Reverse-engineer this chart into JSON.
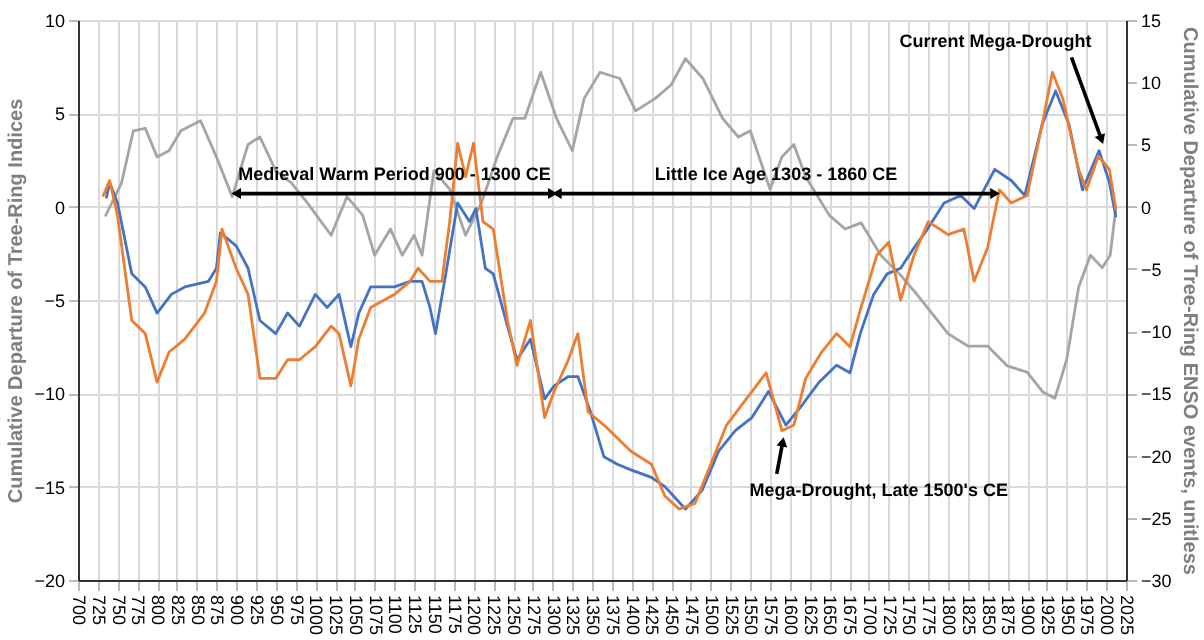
{
  "chart_data": {
    "type": "line",
    "xlabel": null,
    "ylabel": "Cumulative Departure of Tree-Ring Indices",
    "y2label": "Cumulative Departure of Tree-Ring ENSO events, unitless",
    "xlim": [
      700,
      2025
    ],
    "xticks": [
      700,
      725,
      750,
      775,
      800,
      825,
      850,
      875,
      900,
      925,
      950,
      975,
      1000,
      1025,
      1050,
      1075,
      1100,
      1125,
      1150,
      1175,
      1200,
      1225,
      1250,
      1275,
      1300,
      1325,
      1350,
      1375,
      1400,
      1425,
      1450,
      1475,
      1500,
      1525,
      1550,
      1575,
      1600,
      1625,
      1650,
      1675,
      1700,
      1725,
      1750,
      1775,
      1800,
      1825,
      1850,
      1875,
      1900,
      1925,
      1950,
      1975,
      2000,
      2025
    ],
    "ylim": [
      -20,
      10
    ],
    "yticks": [
      -20,
      -15,
      -10,
      -5,
      0,
      5,
      10
    ],
    "y2lim": [
      -30,
      15
    ],
    "y2ticks": [
      -30,
      -25,
      -20,
      -15,
      -10,
      -5,
      0,
      5,
      10,
      15
    ],
    "grid": true,
    "marker": "none",
    "line_style": "solid",
    "series": [
      {
        "color": "#4472c4",
        "x": [
          736,
          740,
          750,
          768,
          785,
          800,
          818,
          835,
          865,
          875,
          880,
          900,
          915,
          930,
          950,
          965,
          980,
          1000,
          1015,
          1030,
          1045,
          1055,
          1070,
          1100,
          1120,
          1135,
          1145,
          1152,
          1165,
          1180,
          1195,
          1203,
          1215,
          1225,
          1243,
          1255,
          1272,
          1290,
          1302,
          1320,
          1332,
          1348,
          1365,
          1382,
          1399,
          1425,
          1442,
          1468,
          1489,
          1510,
          1531,
          1552,
          1573,
          1595,
          1616,
          1637,
          1659,
          1676,
          1689,
          1706,
          1723,
          1740,
          1757,
          1774,
          1795,
          1816,
          1833,
          1859,
          1880,
          1897,
          1919,
          1936,
          1953,
          1970,
          1991,
          2004,
          2012
        ],
        "values": [
          0.5,
          1.3,
          0.2,
          -3.6,
          -4.3,
          -5.7,
          -4.7,
          -4.3,
          -4,
          -3.3,
          -1.4,
          -2.1,
          -3.3,
          -6.1,
          -6.8,
          -5.7,
          -6.4,
          -4.7,
          -5.4,
          -4.7,
          -7.5,
          -5.7,
          -4.3,
          -4.3,
          -4,
          -4,
          -5.4,
          -6.8,
          -3.6,
          0.2,
          -0.8,
          -0.1,
          -3.3,
          -3.6,
          -6.4,
          -8.2,
          -7.1,
          -10.3,
          -9.6,
          -9.1,
          -9.1,
          -11,
          -13.4,
          -13.8,
          -14.1,
          -14.5,
          -15,
          -16.2,
          -15.2,
          -13.1,
          -12,
          -11.3,
          -9.9,
          -11.7,
          -10.6,
          -9.4,
          -8.5,
          -8.9,
          -6.8,
          -4.7,
          -3.6,
          -3.3,
          -2.2,
          -1.2,
          0.2,
          0.6,
          -0.1,
          2,
          1.4,
          0.6,
          4.4,
          6.2,
          4.4,
          0.9,
          3,
          1.3,
          -0.5
        ]
      },
      {
        "color": "#ed7d31",
        "x": [
          732,
          740,
          750,
          768,
          785,
          800,
          815,
          835,
          860,
          875,
          882,
          900,
          915,
          930,
          950,
          965,
          980,
          1000,
          1020,
          1030,
          1045,
          1055,
          1070,
          1100,
          1120,
          1130,
          1145,
          1160,
          1170,
          1180,
          1190,
          1200,
          1212,
          1225,
          1243,
          1255,
          1272,
          1290,
          1302,
          1320,
          1332,
          1345,
          1365,
          1399,
          1425,
          1442,
          1460,
          1480,
          1500,
          1520,
          1545,
          1570,
          1590,
          1605,
          1620,
          1640,
          1659,
          1676,
          1690,
          1710,
          1725,
          1740,
          1757,
          1775,
          1800,
          1820,
          1833,
          1850,
          1865,
          1880,
          1900,
          1919,
          1932,
          1945,
          1965,
          1975,
          1990,
          2004,
          2012
        ],
        "values": [
          0.6,
          1.4,
          -0.5,
          -6.1,
          -6.8,
          -9.4,
          -7.8,
          -7.1,
          -5.7,
          -4,
          -1.2,
          -3.3,
          -4.7,
          -9.2,
          -9.2,
          -8.2,
          -8.2,
          -7.5,
          -6.4,
          -6.8,
          -9.6,
          -7.1,
          -5.4,
          -4.7,
          -4,
          -3.3,
          -4,
          -4,
          -0.8,
          3.4,
          1.6,
          3.4,
          -0.8,
          -1.2,
          -6.1,
          -8.5,
          -6.1,
          -11.3,
          -9.9,
          -8.2,
          -6.8,
          -11,
          -11.7,
          -13.1,
          -13.8,
          -15.5,
          -16.2,
          -15.9,
          -13.8,
          -11.7,
          -10.3,
          -8.9,
          -12,
          -11.7,
          -9.2,
          -7.8,
          -6.8,
          -7.5,
          -5.4,
          -2.6,
          -1.9,
          -5,
          -2.6,
          -0.8,
          -1.5,
          -1.2,
          -4,
          -2.2,
          0.9,
          0.2,
          0.6,
          4.4,
          7.2,
          5.8,
          2,
          0.9,
          2.7,
          2,
          -0.1
        ]
      },
      {
        "color": "#a5a5a5",
        "axis": "y2",
        "x": [
          735,
          755,
          770,
          785,
          800,
          815,
          830,
          855,
          875,
          895,
          915,
          930,
          950,
          970,
          990,
          1020,
          1040,
          1060,
          1075,
          1095,
          1110,
          1125,
          1135,
          1150,
          1170,
          1190,
          1210,
          1230,
          1250,
          1265,
          1285,
          1305,
          1325,
          1340,
          1360,
          1385,
          1405,
          1430,
          1450,
          1468,
          1490,
          1515,
          1535,
          1550,
          1575,
          1590,
          1605,
          1620,
          1650,
          1670,
          1690,
          1715,
          1740,
          1760,
          1780,
          1800,
          1825,
          1850,
          1875,
          1900,
          1920,
          1935,
          1950,
          1965,
          1980,
          1995,
          2005,
          2012
        ],
        "values": [
          -0.7,
          1.9,
          6.1,
          6.3,
          4,
          4.5,
          6.1,
          6.9,
          4,
          0.8,
          5,
          5.6,
          2.9,
          1.9,
          0.3,
          -2.3,
          0.8,
          -0.7,
          -3.9,
          -1.8,
          -3.9,
          -2.3,
          -3.9,
          2.9,
          1.4,
          -2.3,
          0.3,
          4,
          7.1,
          7.1,
          10.8,
          7.1,
          4.5,
          8.7,
          10.8,
          10.3,
          7.7,
          8.7,
          9.8,
          11.9,
          10.3,
          7.1,
          5.6,
          6.1,
          1.4,
          4,
          5,
          2.4,
          -0.7,
          -1.8,
          -1.3,
          -3.9,
          -5.5,
          -7,
          -8.6,
          -10.2,
          -11.2,
          -11.2,
          -12.8,
          -13.3,
          -14.9,
          -15.4,
          -12.3,
          -6.5,
          -3.9,
          -4.9,
          -3.9,
          -0.2
        ]
      }
    ],
    "annotations": [
      "Medieval Warm Period 900 - 1300 CE",
      "Little Ice Age 1303 - 1860 CE",
      {
        "text": "Mega-Drought, Late 1500's CE",
        "x": 1591,
        "y": -12.6
      },
      {
        "text": "Current Mega-Drought",
        "x": 1994,
        "y": 3.6
      }
    ]
  }
}
